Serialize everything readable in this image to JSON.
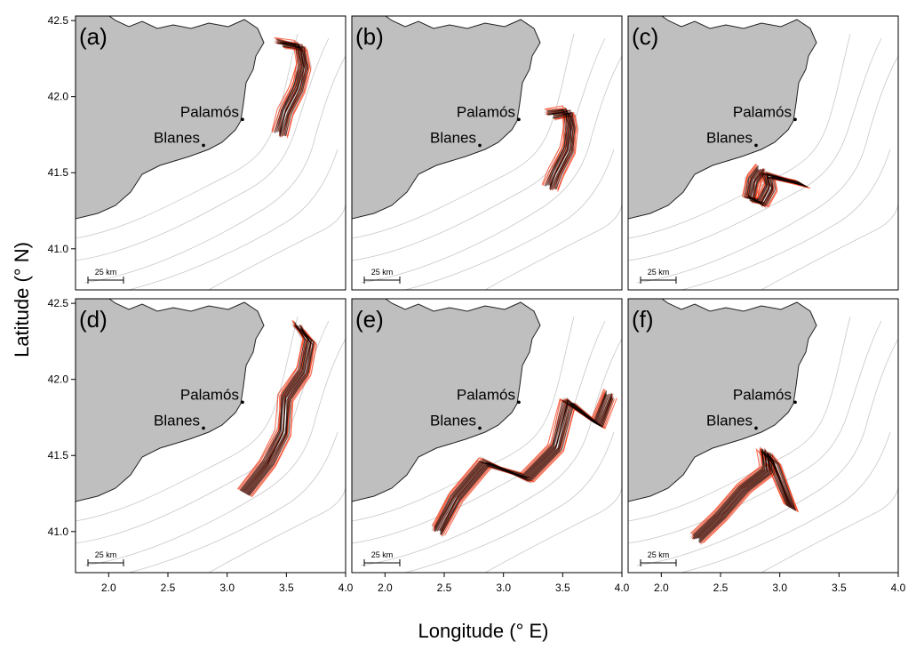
{
  "figure": {
    "xlabel": "Longitude (° E)",
    "ylabel": "Latitude (° N)",
    "x_ticks": [
      "2.0",
      "2.5",
      "3.0",
      "3.5",
      "4.0"
    ],
    "y_ticks": [
      "41.0",
      "41.5",
      "42.0",
      "42.5"
    ],
    "scale_bar": "25 km",
    "colors": {
      "land": "#bfbfbf",
      "track_main": "#000000",
      "track_alt": "#ff2a00",
      "track_ghost": "#777777",
      "isobath": "#c8c8c8"
    }
  },
  "places": [
    {
      "name": "Palamós",
      "lon": 3.13,
      "lat": 41.85
    },
    {
      "name": "Blanes",
      "lon": 2.8,
      "lat": 41.68
    }
  ],
  "map_extent": {
    "lon": [
      1.72,
      4.0
    ],
    "lat": [
      40.73,
      42.53
    ]
  },
  "panels": [
    {
      "label": "(a)",
      "tracks": [
        [
          3.45,
          42.35
        ],
        [
          3.62,
          42.33
        ],
        [
          3.65,
          42.2
        ],
        [
          3.6,
          42.05
        ],
        [
          3.5,
          41.9
        ],
        [
          3.45,
          41.75
        ]
      ]
    },
    {
      "label": "(b)",
      "tracks": [
        [
          3.4,
          41.88
        ],
        [
          3.55,
          41.9
        ],
        [
          3.57,
          41.8
        ],
        [
          3.55,
          41.65
        ],
        [
          3.45,
          41.5
        ],
        [
          3.4,
          41.4
        ]
      ]
    },
    {
      "label": "(c)",
      "tracks": [
        [
          2.85,
          41.52
        ],
        [
          2.78,
          41.45
        ],
        [
          2.75,
          41.33
        ],
        [
          2.85,
          41.3
        ],
        [
          2.92,
          41.4
        ],
        [
          2.9,
          41.48
        ],
        [
          3.2,
          41.42
        ]
      ]
    },
    {
      "label": "(d)",
      "tracks": [
        [
          3.6,
          42.35
        ],
        [
          3.7,
          42.25
        ],
        [
          3.65,
          42.05
        ],
        [
          3.5,
          41.88
        ],
        [
          3.48,
          41.65
        ],
        [
          3.35,
          41.45
        ],
        [
          3.15,
          41.25
        ]
      ]
    },
    {
      "label": "(e)",
      "tracks": [
        [
          2.45,
          41.0
        ],
        [
          2.6,
          41.22
        ],
        [
          2.85,
          41.45
        ],
        [
          3.2,
          41.35
        ],
        [
          3.45,
          41.55
        ],
        [
          3.55,
          41.85
        ],
        [
          3.8,
          41.7
        ],
        [
          3.9,
          41.9
        ]
      ]
    },
    {
      "label": "(f)",
      "tracks": [
        [
          2.3,
          40.95
        ],
        [
          2.5,
          41.1
        ],
        [
          2.7,
          41.28
        ],
        [
          2.9,
          41.4
        ],
        [
          2.88,
          41.52
        ],
        [
          2.95,
          41.45
        ],
        [
          3.1,
          41.15
        ]
      ]
    }
  ]
}
